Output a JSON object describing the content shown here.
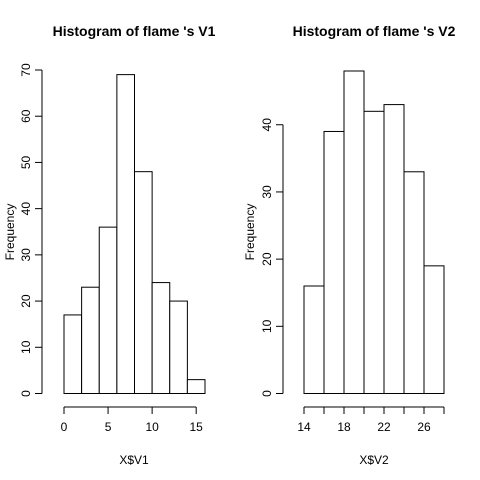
{
  "chart_data": [
    {
      "type": "bar",
      "title": "Histogram of  flame 's V1",
      "xlabel": "X$V1",
      "ylabel": "Frequency",
      "bin_edges": [
        0,
        2,
        4,
        6,
        8,
        10,
        12,
        14,
        16
      ],
      "values": [
        17,
        23,
        36,
        69,
        48,
        24,
        20,
        3
      ],
      "xlim": [
        0,
        16
      ],
      "ylim": [
        0,
        70
      ],
      "x_ticks": [
        0,
        5,
        10,
        15
      ],
      "y_ticks": [
        0,
        10,
        20,
        30,
        40,
        50,
        60,
        70
      ],
      "grid": false
    },
    {
      "type": "bar",
      "title": "Histogram of  flame 's V2",
      "xlabel": "X$V2",
      "ylabel": "Frequency",
      "bin_edges": [
        14,
        16,
        18,
        20,
        22,
        24,
        26,
        28
      ],
      "values": [
        16,
        39,
        48,
        42,
        43,
        33,
        19
      ],
      "xlim": [
        14,
        28
      ],
      "ylim": [
        0,
        48
      ],
      "x_ticks": [
        14,
        16,
        18,
        20,
        22,
        24,
        26,
        28
      ],
      "x_tick_labels": [
        "14",
        "",
        "18",
        "",
        "22",
        "",
        "26",
        ""
      ],
      "y_ticks": [
        0,
        10,
        20,
        30,
        40
      ],
      "grid": false
    }
  ]
}
